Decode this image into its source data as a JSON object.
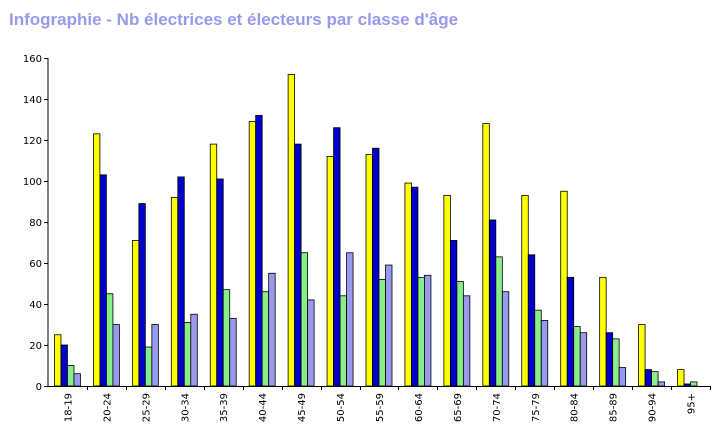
{
  "chart_data": {
    "type": "bar",
    "title": "Infographie - Nb électrices et électeurs par classe d'âge",
    "xlabel": "",
    "ylabel": "",
    "ylim": [
      0,
      160
    ],
    "yticks": [
      0,
      20,
      40,
      60,
      80,
      100,
      120,
      140,
      160
    ],
    "grid": false,
    "legend": "none",
    "categories": [
      "18-19",
      "20-24",
      "25-29",
      "30-34",
      "35-39",
      "40-44",
      "45-49",
      "50-54",
      "55-59",
      "60-64",
      "65-69",
      "70-74",
      "75-79",
      "80-84",
      "85-89",
      "90-94",
      "95+"
    ],
    "series": [
      {
        "color": "#ffff00",
        "values": [
          25,
          123,
          71,
          92,
          118,
          129,
          152,
          112,
          113,
          99,
          93,
          128,
          93,
          95,
          53,
          30,
          8
        ]
      },
      {
        "color": "#0000cc",
        "values": [
          20,
          103,
          89,
          102,
          101,
          132,
          118,
          126,
          116,
          97,
          71,
          81,
          64,
          53,
          26,
          8,
          1
        ]
      },
      {
        "color": "#88ee88",
        "values": [
          10,
          45,
          19,
          31,
          47,
          46,
          65,
          44,
          52,
          53,
          51,
          63,
          37,
          29,
          23,
          7,
          2
        ]
      },
      {
        "color": "#9999ee",
        "values": [
          6,
          30,
          30,
          35,
          33,
          55,
          42,
          65,
          59,
          54,
          44,
          46,
          32,
          26,
          9,
          2,
          0
        ]
      }
    ]
  }
}
